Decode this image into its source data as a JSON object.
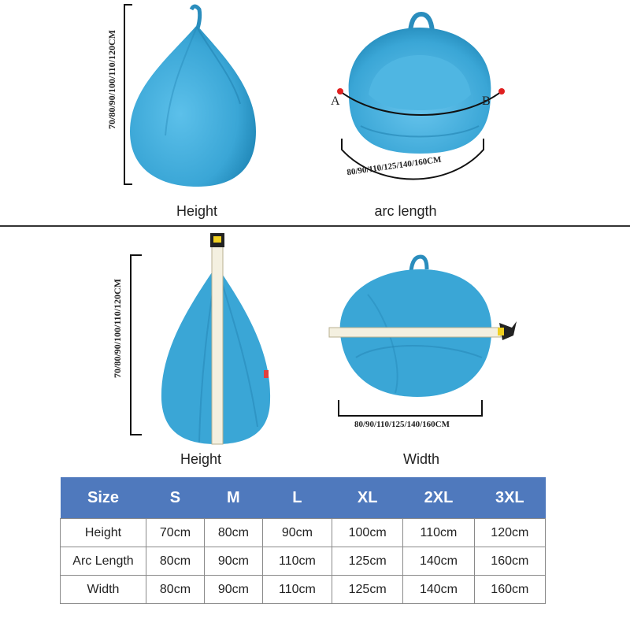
{
  "top_left": {
    "caption": "Height",
    "dimension_label": "70/80/90/100/110/120CM"
  },
  "top_right": {
    "caption": "arc length",
    "point_a": "A",
    "point_b": "B",
    "dimension_label": "80/90/110/125/140/160CM"
  },
  "bottom_left": {
    "caption": "Height",
    "dimension_label": "70/80/90/100/110/120CM"
  },
  "bottom_right": {
    "caption": "Width",
    "dimension_label": "80/90/110/125/140/160CM"
  },
  "colors": {
    "product": "#3fa9d8",
    "product_dark": "#2a8dbd",
    "table_header": "#4f79bd"
  },
  "size_table": {
    "headers": [
      "Size",
      "S",
      "M",
      "L",
      "XL",
      "2XL",
      "3XL"
    ],
    "rows": [
      {
        "label": "Height",
        "values": [
          "70cm",
          "80cm",
          "90cm",
          "100cm",
          "110cm",
          "120cm"
        ]
      },
      {
        "label": "Arc Length",
        "values": [
          "80cm",
          "90cm",
          "110cm",
          "125cm",
          "140cm",
          "160cm"
        ]
      },
      {
        "label": "Width",
        "values": [
          "80cm",
          "90cm",
          "110cm",
          "125cm",
          "140cm",
          "160cm"
        ]
      }
    ]
  }
}
